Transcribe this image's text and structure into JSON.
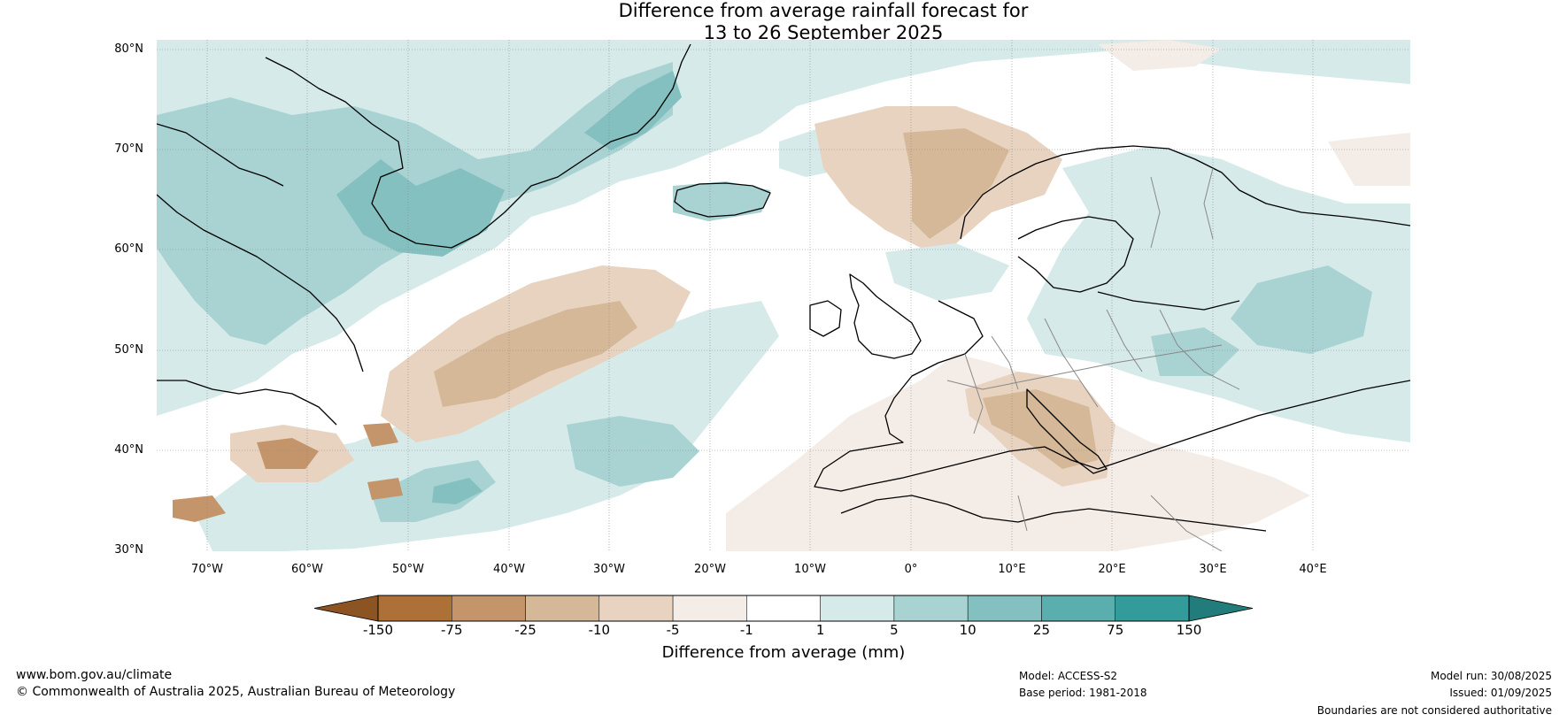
{
  "title": {
    "line1": "Difference from average rainfall forecast for",
    "line2": "13 to 26 September 2025"
  },
  "map": {
    "lat_labels": [
      "80°N",
      "70°N",
      "60°N",
      "50°N",
      "40°N",
      "30°N"
    ],
    "lon_labels": [
      "70°W",
      "60°W",
      "50°W",
      "40°W",
      "30°W",
      "20°W",
      "10°W",
      "0°",
      "10°E",
      "20°E",
      "30°E",
      "40°E"
    ]
  },
  "colorbar": {
    "ticks": [
      "-150",
      "-75",
      "-25",
      "-10",
      "-5",
      "-1",
      "1",
      "5",
      "10",
      "25",
      "75",
      "150"
    ],
    "colors": [
      "#8c5423",
      "#ad7036",
      "#c4956a",
      "#d5b898",
      "#e7d3c0",
      "#f4ece6",
      "#ffffff",
      "#d6eaea",
      "#a9d3d3",
      "#84c0c0",
      "#5aaeae",
      "#349b9b",
      "#237c7c"
    ],
    "label": "Difference from average (mm)"
  },
  "footer": {
    "website": "www.bom.gov.au/climate",
    "copyright": "© Commonwealth of Australia 2025, Australian Bureau of Meteorology",
    "model": "Model: ACCESS-S2",
    "base_period": "Base period: 1981-2018",
    "model_run": "Model run: 30/08/2025",
    "issued": "Issued: 01/09/2025",
    "disclaimer": "Boundaries are not considered authoritative"
  }
}
